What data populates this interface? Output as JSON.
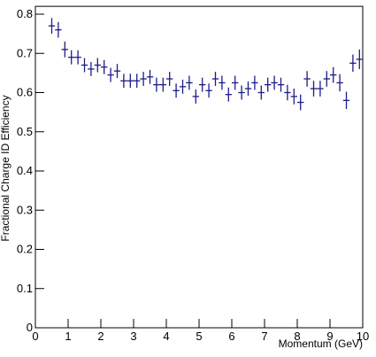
{
  "chart_data": {
    "type": "errorbar",
    "x_label": "Momentum (GeV)",
    "y_label": "Fractional Charge ID Efficiency",
    "x": [
      0.5,
      0.7,
      0.9,
      1.1,
      1.3,
      1.5,
      1.7,
      1.9,
      2.1,
      2.3,
      2.5,
      2.7,
      2.9,
      3.1,
      3.3,
      3.5,
      3.7,
      3.9,
      4.1,
      4.3,
      4.5,
      4.7,
      4.9,
      5.1,
      5.3,
      5.5,
      5.7,
      5.9,
      6.1,
      6.3,
      6.5,
      6.7,
      6.9,
      7.1,
      7.3,
      7.5,
      7.7,
      7.9,
      8.1,
      8.3,
      8.5,
      8.7,
      8.9,
      9.1,
      9.3,
      9.5,
      9.7,
      9.9
    ],
    "values": [
      0.77,
      0.76,
      0.71,
      0.69,
      0.69,
      0.67,
      0.66,
      0.67,
      0.665,
      0.645,
      0.655,
      0.63,
      0.63,
      0.63,
      0.635,
      0.64,
      0.62,
      0.62,
      0.635,
      0.605,
      0.615,
      0.625,
      0.59,
      0.62,
      0.605,
      0.635,
      0.625,
      0.595,
      0.625,
      0.6,
      0.61,
      0.625,
      0.6,
      0.62,
      0.625,
      0.62,
      0.6,
      0.59,
      0.575,
      0.635,
      0.61,
      0.61,
      0.635,
      0.645,
      0.625,
      0.58,
      0.675,
      0.685
    ],
    "yerr": [
      0.02,
      0.02,
      0.02,
      0.018,
      0.018,
      0.018,
      0.018,
      0.018,
      0.018,
      0.018,
      0.018,
      0.018,
      0.018,
      0.018,
      0.018,
      0.018,
      0.018,
      0.018,
      0.018,
      0.018,
      0.018,
      0.018,
      0.018,
      0.018,
      0.018,
      0.018,
      0.018,
      0.018,
      0.018,
      0.018,
      0.018,
      0.018,
      0.018,
      0.018,
      0.018,
      0.018,
      0.02,
      0.02,
      0.02,
      0.02,
      0.02,
      0.02,
      0.02,
      0.02,
      0.022,
      0.022,
      0.022,
      0.025
    ],
    "color": "#1c1c8a",
    "xlim": [
      0,
      10
    ],
    "xticks": [
      0,
      1,
      2,
      3,
      4,
      5,
      6,
      7,
      8,
      9,
      10
    ],
    "ylim": [
      0,
      0.82
    ],
    "yticks": [
      0,
      0.1,
      0.2,
      0.3,
      0.4,
      0.5,
      0.6,
      0.7,
      0.8
    ]
  }
}
